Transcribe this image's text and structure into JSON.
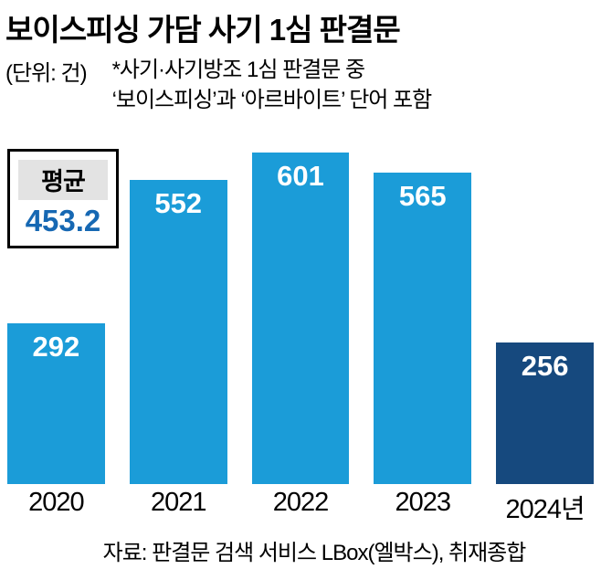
{
  "title": "보이스피싱 가담 사기 1심 판결문",
  "unit_label": "(단위: 건)",
  "note_line1": "*사기·사기방조 1심 판결문 중",
  "note_line2": "‘보이스피싱’과 ‘아르바이트’ 단어 포함",
  "average_box": {
    "label": "평균",
    "value": "453.2"
  },
  "source": "자료: 판결문 검색 서비스 LBox(엘박스), 취재종합",
  "colors": {
    "bar_default": "#1b9cd8",
    "bar_highlight": "#16497e",
    "average_value_text": "#1668b3",
    "average_label_bg": "#e3e3e3"
  },
  "chart_data": {
    "type": "bar",
    "title": "보이스피싱 가담 사기 1심 판결문",
    "unit": "건",
    "categories": [
      "2020",
      "2021",
      "2022",
      "2023",
      "2024년"
    ],
    "values": [
      292,
      552,
      601,
      565,
      256
    ],
    "bar_colors": [
      "#1b9cd8",
      "#1b9cd8",
      "#1b9cd8",
      "#1b9cd8",
      "#16497e"
    ],
    "average": 453.2,
    "ylim": [
      0,
      610
    ],
    "grid": false,
    "legend": false,
    "value_labels": "inside-top-white"
  }
}
